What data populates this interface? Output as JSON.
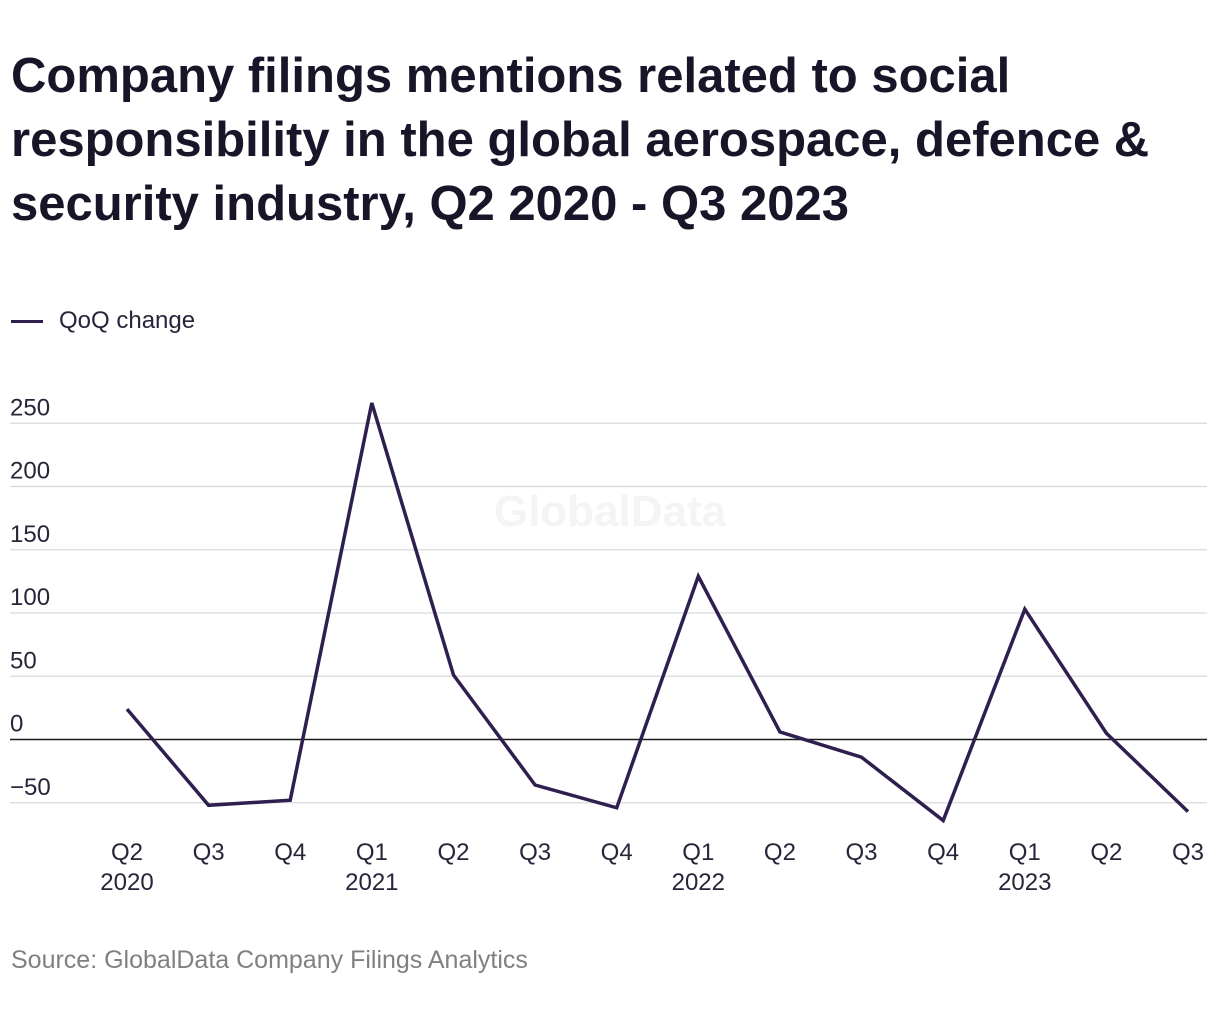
{
  "title": "Company filings mentions related to social responsibility in the global aerospace, defence & security industry, Q2 2020 - Q3 2023",
  "legend": {
    "label": "QoQ change"
  },
  "watermark": "GlobalData",
  "source": "Source: GlobalData Company Filings Analytics",
  "colors": {
    "series": "#2e1f4f",
    "grid": "#d9d9d9",
    "zero_line": "#1a1a1a"
  },
  "chart_data": {
    "type": "line",
    "title": "Company filings mentions related to social responsibility in the global aerospace, defence & security industry, Q2 2020 - Q3 2023",
    "xlabel": "",
    "ylabel": "",
    "ylim": [
      -60,
      265
    ],
    "yticks": [
      250,
      200,
      150,
      100,
      50,
      0,
      -50
    ],
    "ytick_labels": [
      "250",
      "200",
      "150",
      "100",
      "50",
      "0",
      "−50"
    ],
    "categories": [
      "Q2 2020",
      "Q3 2020",
      "Q4 2020",
      "Q1 2021",
      "Q2 2021",
      "Q3 2021",
      "Q4 2021",
      "Q1 2022",
      "Q2 2022",
      "Q3 2022",
      "Q4 2022",
      "Q1 2023",
      "Q2 2023",
      "Q3 2023"
    ],
    "tick_labels": [
      [
        "Q2",
        "2020"
      ],
      [
        "Q3",
        ""
      ],
      [
        "Q4",
        ""
      ],
      [
        "Q1",
        "2021"
      ],
      [
        "Q2",
        ""
      ],
      [
        "Q3",
        ""
      ],
      [
        "Q4",
        ""
      ],
      [
        "Q1",
        "2022"
      ],
      [
        "Q2",
        ""
      ],
      [
        "Q3",
        ""
      ],
      [
        "Q4",
        ""
      ],
      [
        "Q1",
        "2023"
      ],
      [
        "Q2",
        ""
      ],
      [
        "Q3",
        ""
      ]
    ],
    "series": [
      {
        "name": "QoQ change",
        "values": [
          24,
          -52,
          -48,
          266,
          51,
          -36,
          -54,
          129,
          6,
          -14,
          -64,
          103,
          5,
          -57
        ]
      }
    ],
    "grid": true,
    "legend_position": "top-left"
  }
}
